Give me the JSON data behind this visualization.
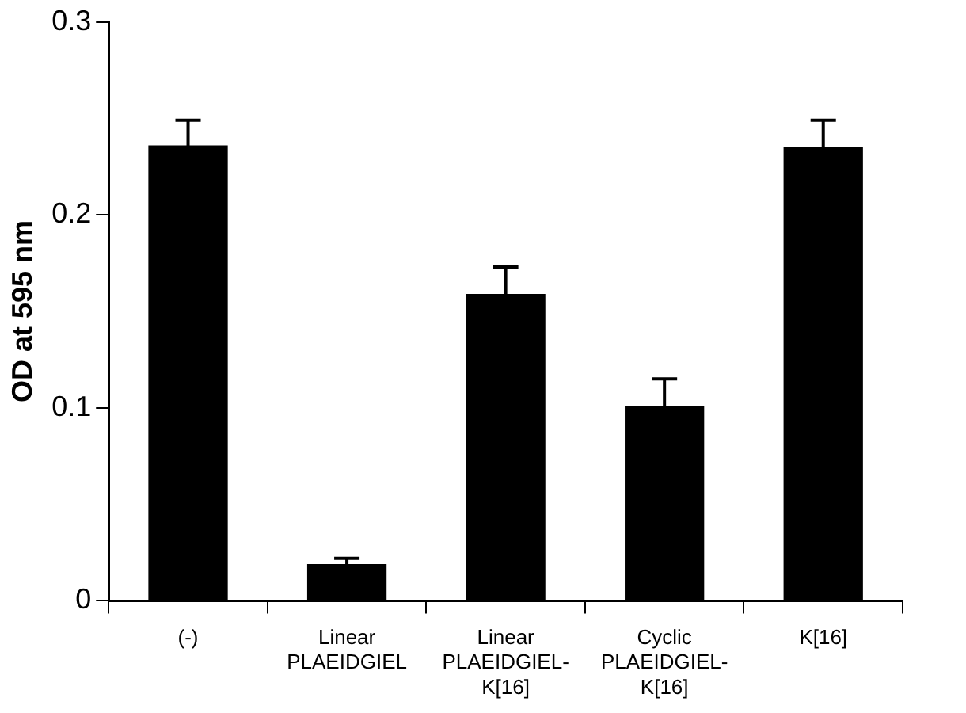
{
  "chart_data": {
    "type": "bar",
    "ylabel": "OD at 595 nm",
    "categories": [
      "(-)",
      "Linear\nPLAEIDGIEL",
      "Linear\nPLAEIDGIEL-\nK[16]",
      "Cyclic\nPLAEIDGIEL-\nK[16]",
      "K[16]"
    ],
    "values": [
      0.236,
      0.019,
      0.159,
      0.101,
      0.235
    ],
    "errors": [
      0.013,
      0.003,
      0.014,
      0.014,
      0.014
    ],
    "color": "#000000",
    "ylim": [
      0,
      0.3
    ],
    "yticks": [
      0,
      0.1,
      0.2,
      0.3
    ],
    "grid": false,
    "legend": false
  }
}
